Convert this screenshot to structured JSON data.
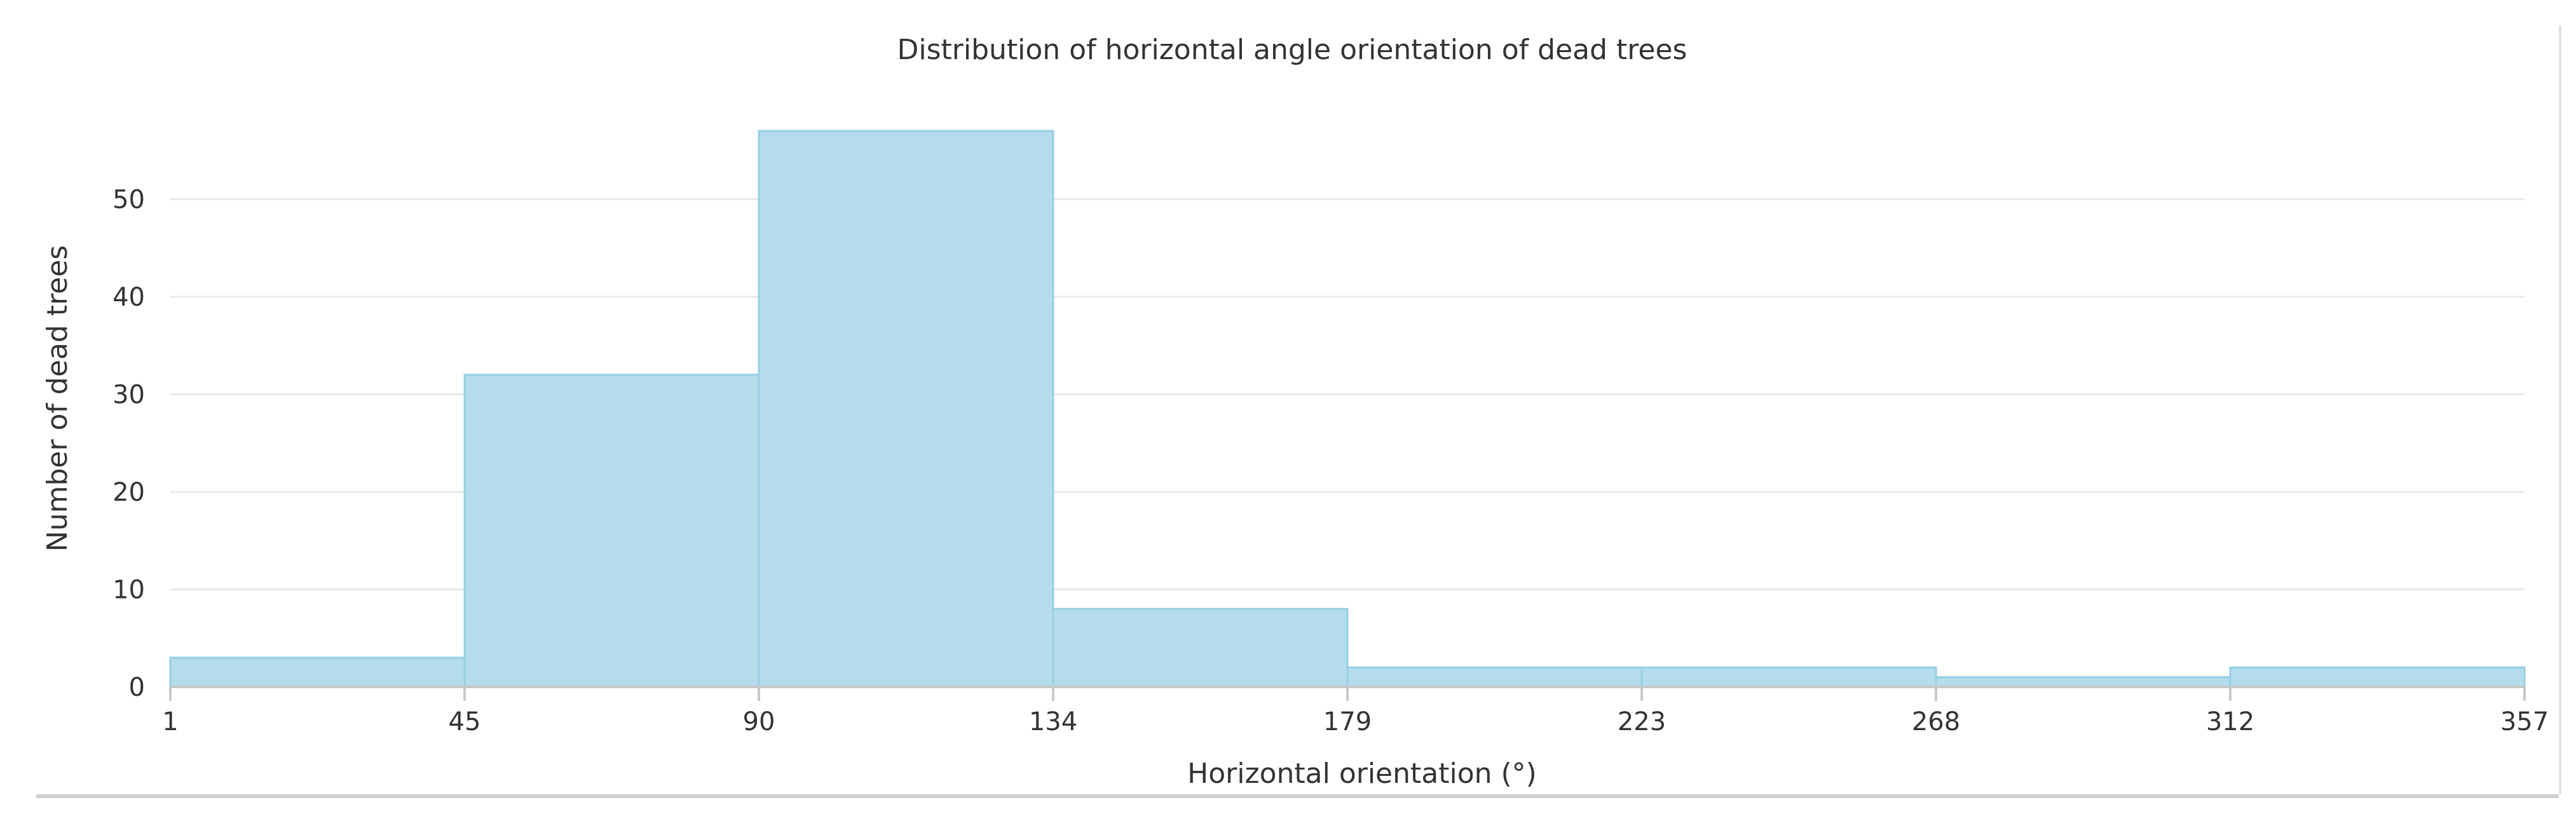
{
  "chart_data": {
    "type": "bar",
    "subtype": "histogram",
    "title": "Distribution of horizontal angle orientation of dead trees",
    "xlabel": "Horizontal orientation (°)",
    "ylabel": "Number of dead trees",
    "bin_edges": [
      1,
      45,
      90,
      134,
      179,
      223,
      268,
      312,
      357
    ],
    "x_tick_labels": [
      "1",
      "45",
      "90",
      "134",
      "179",
      "223",
      "268",
      "312",
      "357"
    ],
    "values": [
      3,
      32,
      57,
      8,
      2,
      2,
      1,
      2
    ],
    "xlim": [
      1,
      357
    ],
    "ylim": [
      0,
      57
    ],
    "y_ticks": [
      0,
      10,
      20,
      30,
      40,
      50
    ],
    "y_tick_labels": [
      "0",
      "10",
      "20",
      "30",
      "40",
      "50"
    ],
    "grid": true,
    "legend": "none",
    "colors": {
      "bar_fill": "#b5dcec",
      "bar_stroke": "#96cfe4"
    }
  }
}
